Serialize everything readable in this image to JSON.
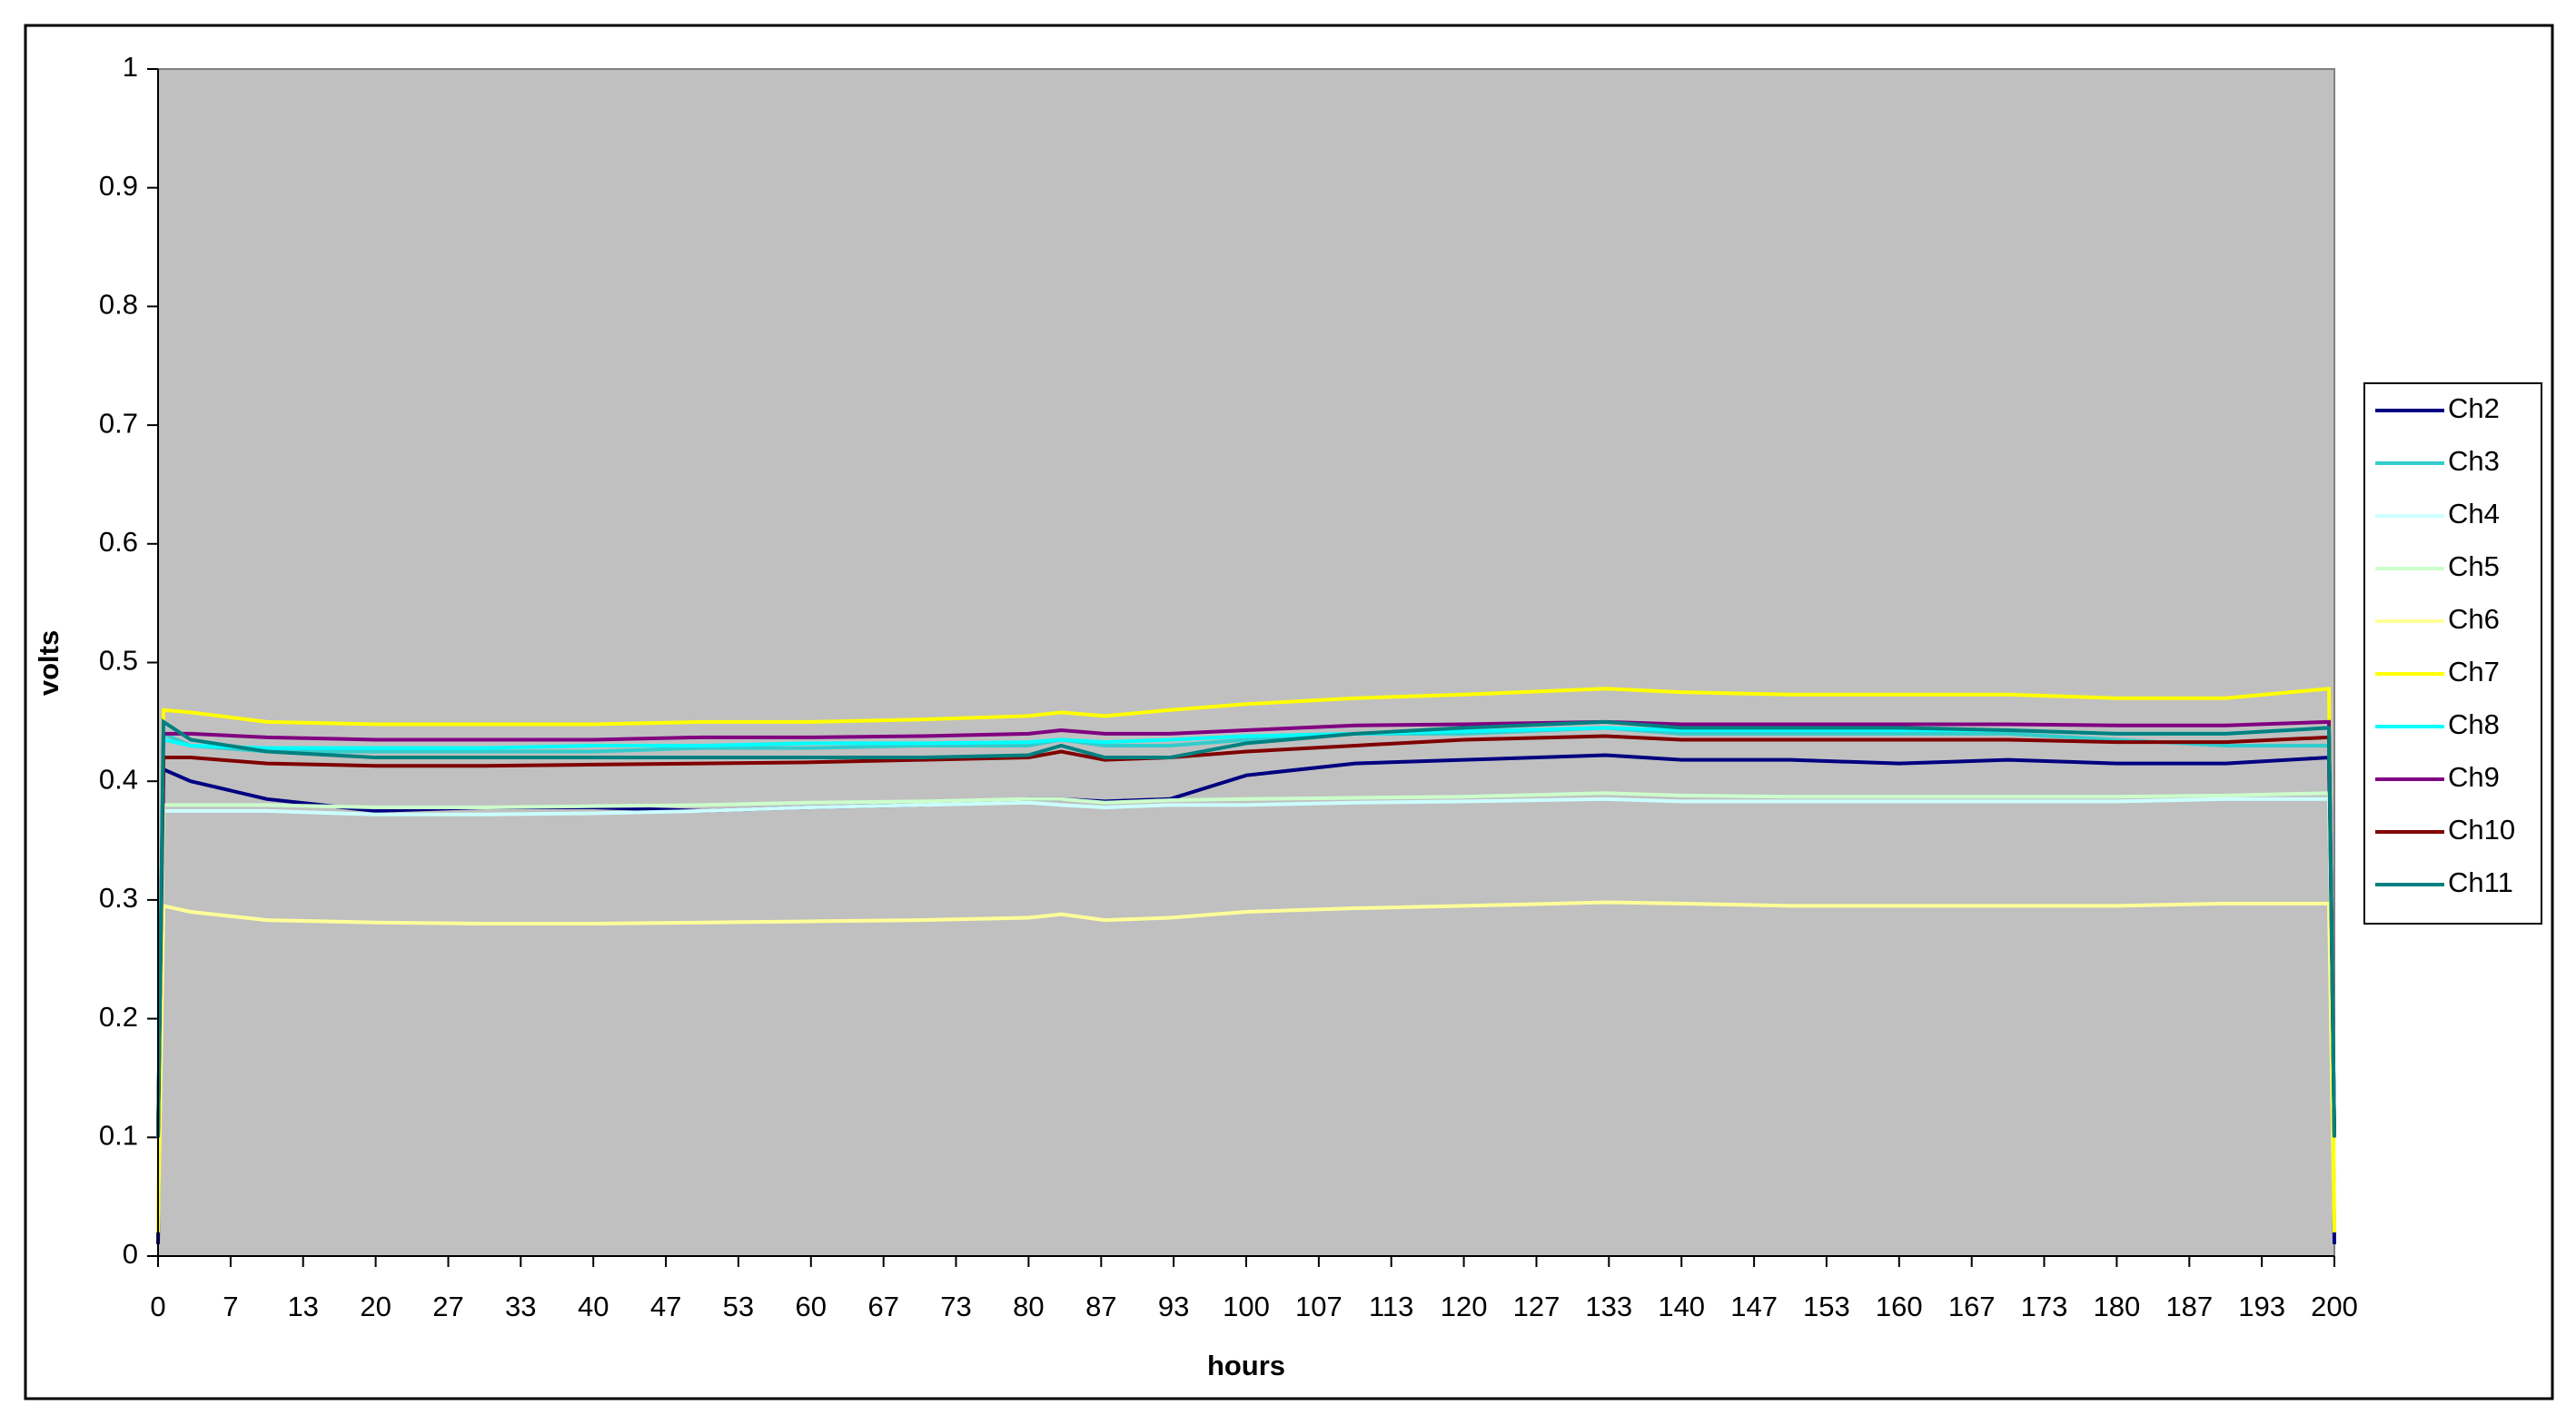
{
  "chart_data": {
    "type": "line",
    "x_label": "hours",
    "y_label": "volts",
    "x": [
      0,
      0.5,
      3,
      10,
      20,
      30,
      40,
      50,
      60,
      70,
      80,
      83,
      87,
      93,
      100,
      110,
      120,
      133,
      140,
      150,
      160,
      170,
      180,
      190,
      199.5,
      200
    ],
    "xlim": [
      0,
      200
    ],
    "xticks": [
      0,
      {
        "value": 6.67,
        "label": "7"
      },
      {
        "value": 13.33,
        "label": "13"
      },
      20,
      {
        "value": 26.67,
        "label": "27"
      },
      {
        "value": 33.33,
        "label": "33"
      },
      40,
      {
        "value": 46.67,
        "label": "47"
      },
      {
        "value": 53.33,
        "label": "53"
      },
      60,
      {
        "value": 66.67,
        "label": "67"
      },
      {
        "value": 73.33,
        "label": "73"
      },
      80,
      {
        "value": 86.67,
        "label": "87"
      },
      {
        "value": 93.33,
        "label": "93"
      },
      100,
      {
        "value": 106.67,
        "label": "107"
      },
      {
        "value": 113.33,
        "label": "113"
      },
      120,
      {
        "value": 126.67,
        "label": "127"
      },
      {
        "value": 133.33,
        "label": "133"
      },
      140,
      {
        "value": 146.67,
        "label": "147"
      },
      {
        "value": 153.33,
        "label": "153"
      },
      160,
      {
        "value": 166.67,
        "label": "167"
      },
      {
        "value": 173.33,
        "label": "173"
      },
      180,
      {
        "value": 186.67,
        "label": "187"
      },
      {
        "value": 193.33,
        "label": "193"
      },
      200
    ],
    "ylim": [
      0,
      1
    ],
    "yticks": [
      0,
      0.1,
      0.2,
      0.3,
      0.4,
      0.5,
      0.6,
      0.7,
      0.8,
      0.9,
      1
    ],
    "plot_background": "#c0c0c0",
    "legend": "right",
    "series": [
      {
        "name": "Ch2",
        "color": "#000080",
        "values": [
          0.01,
          0.41,
          0.4,
          0.385,
          0.375,
          0.378,
          0.378,
          0.375,
          0.378,
          0.38,
          0.385,
          0.385,
          0.383,
          0.385,
          0.405,
          0.415,
          0.418,
          0.422,
          0.418,
          0.418,
          0.415,
          0.418,
          0.415,
          0.415,
          0.42,
          0.01
        ]
      },
      {
        "name": "Ch3",
        "color": "#33cccc",
        "values": [
          0.1,
          0.44,
          0.43,
          0.425,
          0.425,
          0.425,
          0.425,
          0.428,
          0.428,
          0.43,
          0.43,
          0.435,
          0.43,
          0.43,
          0.435,
          0.44,
          0.44,
          0.445,
          0.44,
          0.44,
          0.44,
          0.44,
          0.435,
          0.43,
          0.43,
          0.1
        ]
      },
      {
        "name": "Ch4",
        "color": "#ccffff",
        "values": [
          0.1,
          0.375,
          0.375,
          0.375,
          0.372,
          0.372,
          0.373,
          0.375,
          0.378,
          0.38,
          0.382,
          0.38,
          0.378,
          0.38,
          0.38,
          0.382,
          0.383,
          0.385,
          0.383,
          0.383,
          0.383,
          0.383,
          0.383,
          0.385,
          0.385,
          0.1
        ]
      },
      {
        "name": "Ch5",
        "color": "#ccffcc",
        "values": [
          0.1,
          0.38,
          0.38,
          0.38,
          0.378,
          0.378,
          0.379,
          0.38,
          0.382,
          0.383,
          0.385,
          0.385,
          0.382,
          0.384,
          0.385,
          0.386,
          0.387,
          0.39,
          0.388,
          0.387,
          0.387,
          0.387,
          0.387,
          0.388,
          0.39,
          0.1
        ]
      },
      {
        "name": "Ch6",
        "color": "#ffff99",
        "values": [
          0.02,
          0.295,
          0.29,
          0.283,
          0.281,
          0.28,
          0.28,
          0.281,
          0.282,
          0.283,
          0.285,
          0.288,
          0.283,
          0.285,
          0.29,
          0.293,
          0.295,
          0.298,
          0.297,
          0.295,
          0.295,
          0.295,
          0.295,
          0.297,
          0.297,
          0.02
        ]
      },
      {
        "name": "Ch7",
        "color": "#ffff00",
        "values": [
          0.02,
          0.46,
          0.458,
          0.45,
          0.448,
          0.448,
          0.448,
          0.45,
          0.45,
          0.452,
          0.455,
          0.458,
          0.455,
          0.46,
          0.465,
          0.47,
          0.473,
          0.478,
          0.475,
          0.473,
          0.473,
          0.473,
          0.47,
          0.47,
          0.478,
          0.02
        ]
      },
      {
        "name": "Ch8",
        "color": "#00ffff",
        "values": [
          0.1,
          0.435,
          0.43,
          0.428,
          0.428,
          0.428,
          0.43,
          0.43,
          0.432,
          0.432,
          0.433,
          0.435,
          0.433,
          0.435,
          0.438,
          0.44,
          0.442,
          0.445,
          0.443,
          0.443,
          0.443,
          0.443,
          0.44,
          0.44,
          0.445,
          0.1
        ]
      },
      {
        "name": "Ch9",
        "color": "#800080",
        "values": [
          0.1,
          0.44,
          0.44,
          0.437,
          0.435,
          0.435,
          0.435,
          0.437,
          0.437,
          0.438,
          0.44,
          0.443,
          0.44,
          0.44,
          0.443,
          0.447,
          0.448,
          0.45,
          0.448,
          0.448,
          0.448,
          0.448,
          0.447,
          0.447,
          0.45,
          0.1
        ]
      },
      {
        "name": "Ch10",
        "color": "#800000",
        "values": [
          0.1,
          0.42,
          0.42,
          0.415,
          0.413,
          0.413,
          0.414,
          0.415,
          0.416,
          0.418,
          0.42,
          0.425,
          0.418,
          0.42,
          0.425,
          0.43,
          0.435,
          0.438,
          0.435,
          0.435,
          0.435,
          0.435,
          0.433,
          0.433,
          0.437,
          0.1
        ]
      },
      {
        "name": "Ch11",
        "color": "#008080",
        "values": [
          0.1,
          0.45,
          0.435,
          0.425,
          0.42,
          0.42,
          0.42,
          0.42,
          0.42,
          0.42,
          0.422,
          0.43,
          0.42,
          0.42,
          0.432,
          0.44,
          0.445,
          0.45,
          0.445,
          0.445,
          0.445,
          0.443,
          0.44,
          0.44,
          0.445,
          0.1
        ]
      }
    ]
  }
}
